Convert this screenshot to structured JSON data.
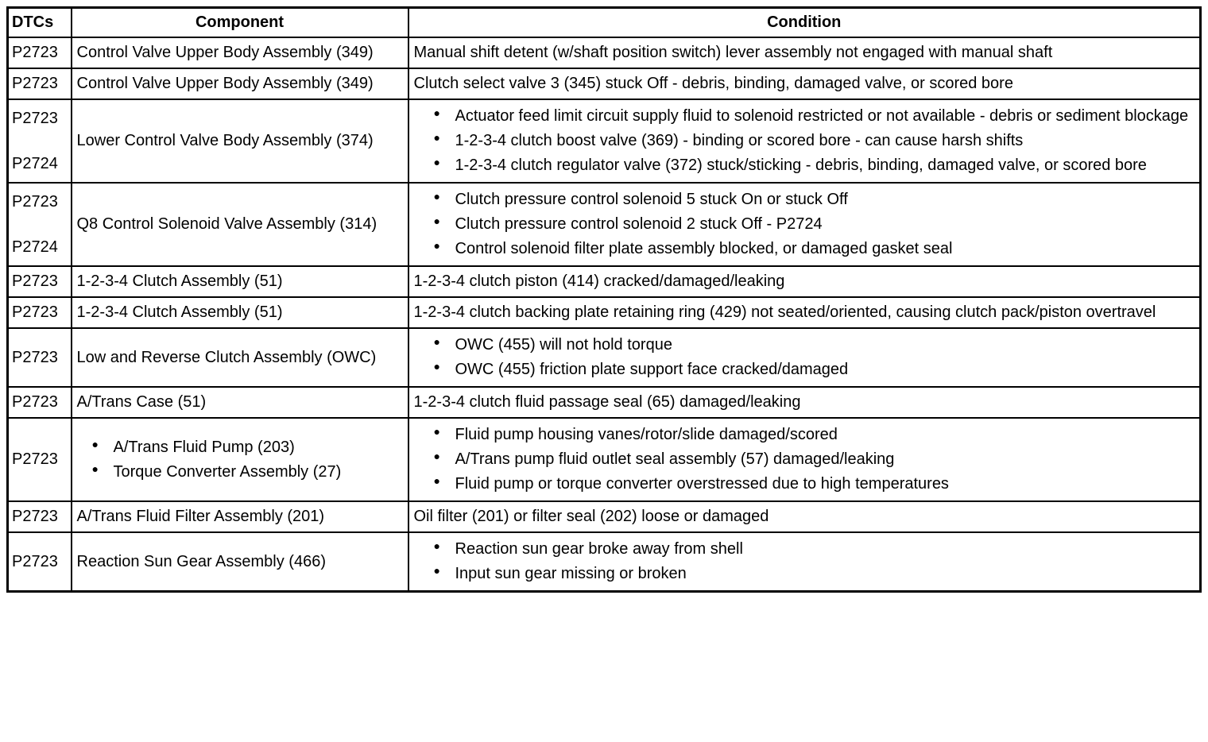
{
  "table": {
    "headers": [
      "DTCs",
      "Component",
      "Condition"
    ],
    "rows": [
      {
        "dtcs": [
          "P2723"
        ],
        "component": {
          "type": "text",
          "text": "Control Valve Upper Body Assembly (349)"
        },
        "condition": {
          "type": "text",
          "text": "Manual shift detent (w/shaft position switch) lever assembly not engaged with manual shaft"
        }
      },
      {
        "dtcs": [
          "P2723"
        ],
        "component": {
          "type": "text",
          "text": "Control Valve Upper Body Assembly (349)"
        },
        "condition": {
          "type": "text",
          "text": "Clutch select valve 3 (345) stuck Off - debris, binding, damaged valve, or scored bore"
        }
      },
      {
        "dtcs": [
          "P2723",
          "P2724"
        ],
        "component": {
          "type": "text",
          "text": "Lower Control Valve Body Assembly (374)"
        },
        "condition": {
          "type": "bullets",
          "items": [
            "Actuator feed limit circuit supply fluid to solenoid restricted or not available - debris or sediment blockage",
            "1-2-3-4 clutch boost valve (369) - binding or scored bore - can cause harsh shifts",
            "1-2-3-4 clutch regulator valve (372) stuck/sticking - debris, binding, damaged valve, or scored bore"
          ]
        }
      },
      {
        "dtcs": [
          "P2723",
          "P2724"
        ],
        "component": {
          "type": "text",
          "text": "Q8 Control Solenoid Valve Assembly (314)"
        },
        "condition": {
          "type": "bullets",
          "items": [
            "Clutch pressure control solenoid 5 stuck On or stuck Off",
            "Clutch pressure control solenoid 2 stuck Off - P2724",
            "Control solenoid filter plate assembly blocked, or damaged gasket seal"
          ]
        }
      },
      {
        "dtcs": [
          "P2723"
        ],
        "component": {
          "type": "text",
          "text": "1-2-3-4 Clutch Assembly (51)"
        },
        "condition": {
          "type": "text",
          "text": "1-2-3-4 clutch piston (414) cracked/damaged/leaking"
        }
      },
      {
        "dtcs": [
          "P2723"
        ],
        "component": {
          "type": "text",
          "text": "1-2-3-4 Clutch Assembly (51)"
        },
        "condition": {
          "type": "text",
          "text": "1-2-3-4 clutch backing plate retaining ring (429) not seated/oriented, causing clutch pack/piston overtravel"
        }
      },
      {
        "dtcs": [
          "P2723"
        ],
        "component": {
          "type": "text",
          "text": "Low and Reverse Clutch Assembly (OWC)"
        },
        "condition": {
          "type": "bullets",
          "items": [
            "OWC (455) will not hold torque",
            "OWC (455) friction plate support face cracked/damaged"
          ]
        }
      },
      {
        "dtcs": [
          "P2723"
        ],
        "component": {
          "type": "text",
          "text": "A/Trans Case (51)"
        },
        "condition": {
          "type": "text",
          "text": "1-2-3-4 clutch fluid passage seal (65) damaged/leaking"
        }
      },
      {
        "dtcs": [
          "P2723"
        ],
        "component": {
          "type": "bullets",
          "items": [
            "A/Trans Fluid Pump (203)",
            "Torque Converter Assembly (27)"
          ]
        },
        "condition": {
          "type": "bullets",
          "items": [
            "Fluid pump housing vanes/rotor/slide damaged/scored",
            "A/Trans pump fluid outlet seal assembly (57) damaged/leaking",
            "Fluid pump or torque converter overstressed due to high temperatures"
          ]
        }
      },
      {
        "dtcs": [
          "P2723"
        ],
        "component": {
          "type": "text",
          "text": "A/Trans Fluid Filter Assembly (201)"
        },
        "condition": {
          "type": "text",
          "text": "Oil filter (201) or filter seal (202) loose or damaged"
        }
      },
      {
        "dtcs": [
          "P2723"
        ],
        "component": {
          "type": "text",
          "text": "Reaction Sun Gear Assembly (466)"
        },
        "condition": {
          "type": "bullets",
          "items": [
            "Reaction sun gear broke away from shell",
            "Input sun gear missing or broken"
          ]
        }
      }
    ]
  }
}
